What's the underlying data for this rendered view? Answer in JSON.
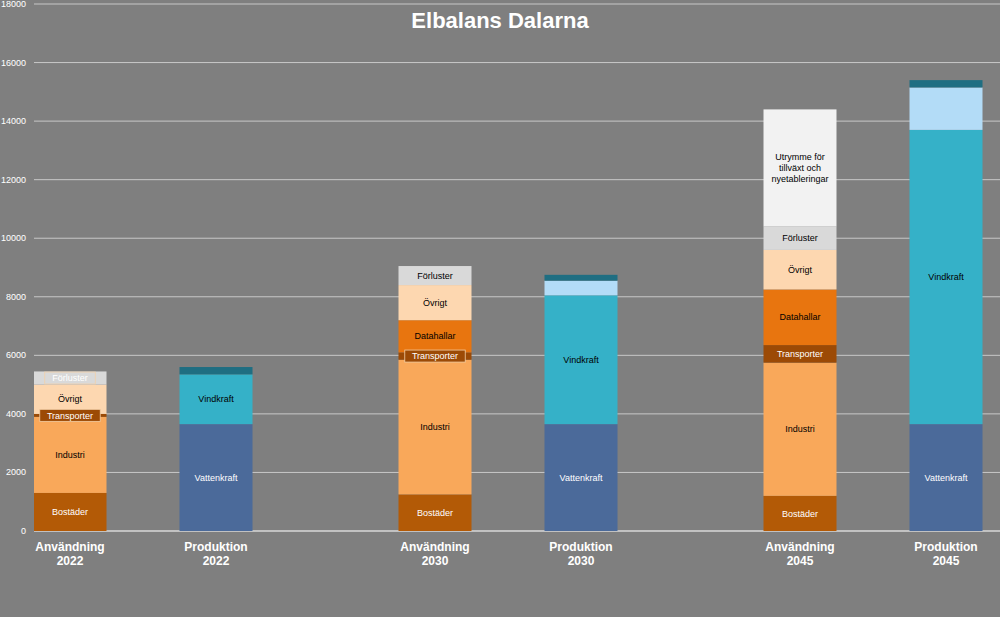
{
  "chart_data": {
    "type": "bar",
    "title": "Elbalans Dalarna",
    "stacked": true,
    "grid": true,
    "categories": [
      "Användning 2022",
      "Produktion 2022",
      "Användning 2030",
      "Produktion 2030",
      "Användning 2045",
      "Produktion 2045"
    ],
    "ylim": [
      0,
      18000
    ],
    "yticks": [
      0,
      2000,
      4000,
      6000,
      8000,
      10000,
      12000,
      14000,
      16000,
      18000
    ],
    "series": [
      {
        "name": "Bostäder",
        "color": "#b35a06",
        "values": [
          1300,
          0,
          1250,
          0,
          1200,
          0
        ]
      },
      {
        "name": "Industri",
        "color": "#f9a85a",
        "values": [
          2600,
          0,
          4600,
          0,
          4550,
          0
        ]
      },
      {
        "name": "Transporter",
        "color": "#9c4a05",
        "values": [
          100,
          0,
          250,
          0,
          600,
          0
        ]
      },
      {
        "name": "Datahallar",
        "color": "#e8750f",
        "values": [
          0,
          0,
          1100,
          0,
          1900,
          0
        ]
      },
      {
        "name": "Övrigt",
        "color": "#fdd7b0",
        "values": [
          1000,
          0,
          1200,
          0,
          1350,
          0
        ]
      },
      {
        "name": "Förluster",
        "color": "#d9d9d9",
        "values": [
          450,
          0,
          650,
          0,
          800,
          0
        ]
      },
      {
        "name": "Utrymme för tillväxt och nyetableringar",
        "color": "#f2f2f2",
        "values": [
          0,
          0,
          0,
          0,
          4000,
          0
        ]
      },
      {
        "name": "Vattenkraft",
        "color": "#4b6a9a",
        "values": [
          0,
          3650,
          0,
          3650,
          0,
          3650
        ]
      },
      {
        "name": "Vindkraft",
        "color": "#35b1c8",
        "values": [
          0,
          1700,
          0,
          4400,
          0,
          10050
        ]
      },
      {
        "name": null,
        "color": "#b3dcf7",
        "values": [
          0,
          0,
          0,
          500,
          0,
          1450
        ]
      },
      {
        "name": null,
        "color": "#1f6e82",
        "values": [
          0,
          250,
          0,
          200,
          0,
          250
        ]
      }
    ]
  }
}
